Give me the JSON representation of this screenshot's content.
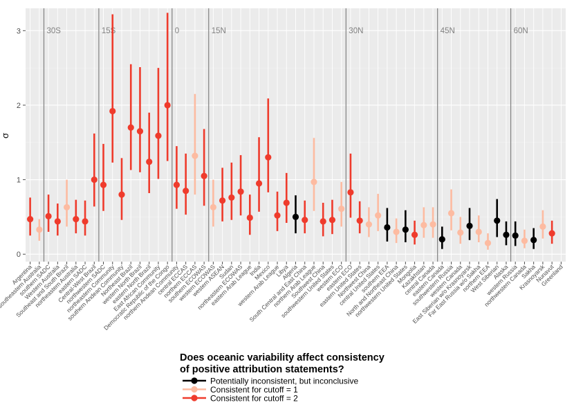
{
  "colors": {
    "panel_bg": "#ebebeb",
    "grid_major": "#ffffff",
    "grid_minor": "#f5f5f5",
    "band_line": "#808080",
    "black": "#000000",
    "light": "#fdbba1",
    "red": "#ef3b2c"
  },
  "chart_data": {
    "type": "point-range",
    "ylabel": "σ",
    "xlabel": "",
    "ylim": [
      -0.1,
      3.3
    ],
    "yticks": [
      0,
      1,
      2,
      3
    ],
    "legend": {
      "position": "bottom",
      "title_line1": "Does oceanic variability affect consistency",
      "title_line2": "of positive attribution statements?",
      "entries": [
        {
          "label": "Potentially inconsistent, but inconclusive",
          "color_key": "black"
        },
        {
          "label": "Consistent for cutoff = 1",
          "color_key": "light"
        },
        {
          "label": "Consistent for cutoff = 2",
          "color_key": "red"
        }
      ]
    },
    "bands": [
      {
        "label": "30S",
        "after_index": 1
      },
      {
        "label": "15S",
        "after_index": 7
      },
      {
        "label": "0",
        "after_index": 15
      },
      {
        "label": "15N",
        "after_index": 19
      },
      {
        "label": "30N",
        "after_index": 34
      },
      {
        "label": "45N",
        "after_index": 44
      },
      {
        "label": "60N",
        "after_index": 52
      }
    ],
    "regions": [
      {
        "name": "Argentina",
        "value": 0.47,
        "low": 0.25,
        "high": 0.76,
        "cat": "red"
      },
      {
        "name": "southeastern Australia",
        "value": 0.33,
        "low": 0.18,
        "high": 0.47,
        "cat": "light"
      },
      {
        "name": "southern SADC",
        "value": 0.51,
        "low": 0.3,
        "high": 0.8,
        "cat": "red"
      },
      {
        "name": "Western Australia",
        "value": 0.44,
        "low": 0.25,
        "high": 0.68,
        "cat": "red"
      },
      {
        "name": "Southeast and South Brazil",
        "value": 0.63,
        "low": 0.37,
        "high": 1.0,
        "cat": "light"
      },
      {
        "name": "northeastern Australia",
        "value": 0.47,
        "low": 0.28,
        "high": 0.73,
        "cat": "red"
      },
      {
        "name": "eastern SADC",
        "value": 0.44,
        "low": 0.25,
        "high": 0.72,
        "cat": "red"
      },
      {
        "name": "Central-West Brazil",
        "value": 1.0,
        "low": 0.64,
        "high": 1.62,
        "cat": "red"
      },
      {
        "name": "northwestern SADC",
        "value": 0.93,
        "low": 0.58,
        "high": 1.48,
        "cat": "red"
      },
      {
        "name": "northeastern Community",
        "value": 1.92,
        "low": 1.23,
        "high": 3.22,
        "cat": "red"
      },
      {
        "name": "southern Andean Community",
        "value": 0.8,
        "low": 0.46,
        "high": 1.29,
        "cat": "red"
      },
      {
        "name": "Northeast Brazil",
        "value": 1.7,
        "low": 1.13,
        "high": 2.55,
        "cat": "red"
      },
      {
        "name": "western North Brazil",
        "value": 1.65,
        "low": 1.1,
        "high": 2.51,
        "cat": "red"
      },
      {
        "name": "eastern North Brazil",
        "value": 1.24,
        "low": 0.82,
        "high": 1.9,
        "cat": "red"
      },
      {
        "name": "East African Community",
        "value": 1.59,
        "low": 1.01,
        "high": 2.5,
        "cat": "red"
      },
      {
        "name": "Democratic Republic of the Congo",
        "value": 2.0,
        "low": 1.25,
        "high": 3.24,
        "cat": "red"
      },
      {
        "name": "northern Andean Community",
        "value": 0.93,
        "low": 0.61,
        "high": 1.45,
        "cat": "red"
      },
      {
        "name": "central ECCAS",
        "value": 0.85,
        "low": 0.53,
        "high": 1.35,
        "cat": "red"
      },
      {
        "name": "northern ECCAS",
        "value": 1.32,
        "low": 0.8,
        "high": 2.15,
        "cat": "light"
      },
      {
        "name": "southern ECOWAS",
        "value": 1.05,
        "low": 0.65,
        "high": 1.68,
        "cat": "red"
      },
      {
        "name": "western ECOWAS",
        "value": 0.63,
        "low": 0.37,
        "high": 1.0,
        "cat": "light"
      },
      {
        "name": "western ASEAN",
        "value": 0.72,
        "low": 0.44,
        "high": 1.16,
        "cat": "red"
      },
      {
        "name": "Sudan",
        "value": 0.76,
        "low": 0.46,
        "high": 1.23,
        "cat": "red"
      },
      {
        "name": "northeastern ECOWAS",
        "value": 0.84,
        "low": 0.52,
        "high": 1.33,
        "cat": "red"
      },
      {
        "name": "eastern Arab League",
        "value": 0.49,
        "low": 0.26,
        "high": 0.8,
        "cat": "red"
      },
      {
        "name": "India",
        "value": 0.95,
        "low": 0.57,
        "high": 1.57,
        "cat": "red"
      },
      {
        "name": "Mexico",
        "value": 1.3,
        "low": 0.83,
        "high": 2.09,
        "cat": "red"
      },
      {
        "name": "western Arab League",
        "value": 0.52,
        "low": 0.31,
        "high": 0.84,
        "cat": "red"
      },
      {
        "name": "Libya",
        "value": 0.69,
        "low": 0.42,
        "high": 1.09,
        "cat": "red"
      },
      {
        "name": "Algeria",
        "value": 0.5,
        "low": 0.28,
        "high": 0.79,
        "cat": "black"
      },
      {
        "name": "South Central and East China",
        "value": 0.46,
        "low": 0.28,
        "high": 0.72,
        "cat": "red"
      },
      {
        "name": "northern Arab League",
        "value": 0.97,
        "low": 0.58,
        "high": 1.56,
        "cat": "light"
      },
      {
        "name": "Southwest China",
        "value": 0.44,
        "low": 0.24,
        "high": 0.69,
        "cat": "red"
      },
      {
        "name": "southwestern United States",
        "value": 0.46,
        "low": 0.27,
        "high": 0.73,
        "cat": "red"
      },
      {
        "name": "western ECO",
        "value": 0.61,
        "low": 0.37,
        "high": 0.97,
        "cat": "light"
      },
      {
        "name": "eastern ECO",
        "value": 0.83,
        "low": 0.49,
        "high": 1.35,
        "cat": "red"
      },
      {
        "name": "eastern United States",
        "value": 0.45,
        "low": 0.28,
        "high": 0.71,
        "cat": "red"
      },
      {
        "name": "Northwest China",
        "value": 0.4,
        "low": 0.23,
        "high": 0.63,
        "cat": "light"
      },
      {
        "name": "central United States",
        "value": 0.52,
        "low": 0.31,
        "high": 0.81,
        "cat": "light"
      },
      {
        "name": "southern EEA",
        "value": 0.36,
        "low": 0.17,
        "high": 0.62,
        "cat": "black"
      },
      {
        "name": "North and Northeast China",
        "value": 0.3,
        "low": 0.15,
        "high": 0.48,
        "cat": "light"
      },
      {
        "name": "northwestern United States",
        "value": 0.33,
        "low": 0.16,
        "high": 0.59,
        "cat": "black"
      },
      {
        "name": "Mongolia",
        "value": 0.26,
        "low": 0.13,
        "high": 0.45,
        "cat": "red"
      },
      {
        "name": "Kazakhstan",
        "value": 0.39,
        "low": 0.22,
        "high": 0.63,
        "cat": "light"
      },
      {
        "name": "central Canada",
        "value": 0.4,
        "low": 0.22,
        "high": 0.63,
        "cat": "light"
      },
      {
        "name": "eastern Canada",
        "value": 0.2,
        "low": 0.07,
        "high": 0.37,
        "cat": "black"
      },
      {
        "name": "southwestern Russia",
        "value": 0.55,
        "low": 0.32,
        "high": 0.87,
        "cat": "light"
      },
      {
        "name": "western Canada",
        "value": 0.29,
        "low": 0.14,
        "high": 0.5,
        "cat": "light"
      },
      {
        "name": "East Siberian w/o Krasnoyarsk",
        "value": 0.38,
        "low": 0.19,
        "high": 0.62,
        "cat": "black"
      },
      {
        "name": "Far East Russia w/o Sakha",
        "value": 0.3,
        "low": 0.16,
        "high": 0.52,
        "cat": "light"
      },
      {
        "name": "northern EEA",
        "value": 0.15,
        "low": 0.06,
        "high": 0.28,
        "cat": "light"
      },
      {
        "name": "West Siberian",
        "value": 0.45,
        "low": 0.23,
        "high": 0.74,
        "cat": "black"
      },
      {
        "name": "Alaska",
        "value": 0.26,
        "low": 0.12,
        "high": 0.44,
        "cat": "black"
      },
      {
        "name": "western Russia",
        "value": 0.25,
        "low": 0.11,
        "high": 0.44,
        "cat": "black"
      },
      {
        "name": "northwestern Canada",
        "value": 0.18,
        "low": 0.08,
        "high": 0.33,
        "cat": "light"
      },
      {
        "name": "Sakha",
        "value": 0.19,
        "low": 0.07,
        "high": 0.35,
        "cat": "black"
      },
      {
        "name": "Krasnoyarsk",
        "value": 0.37,
        "low": 0.21,
        "high": 0.59,
        "cat": "light"
      },
      {
        "name": "Nunavut",
        "value": 0.28,
        "low": 0.14,
        "high": 0.45,
        "cat": "red"
      }
    ],
    "last_label": "Greenland"
  }
}
